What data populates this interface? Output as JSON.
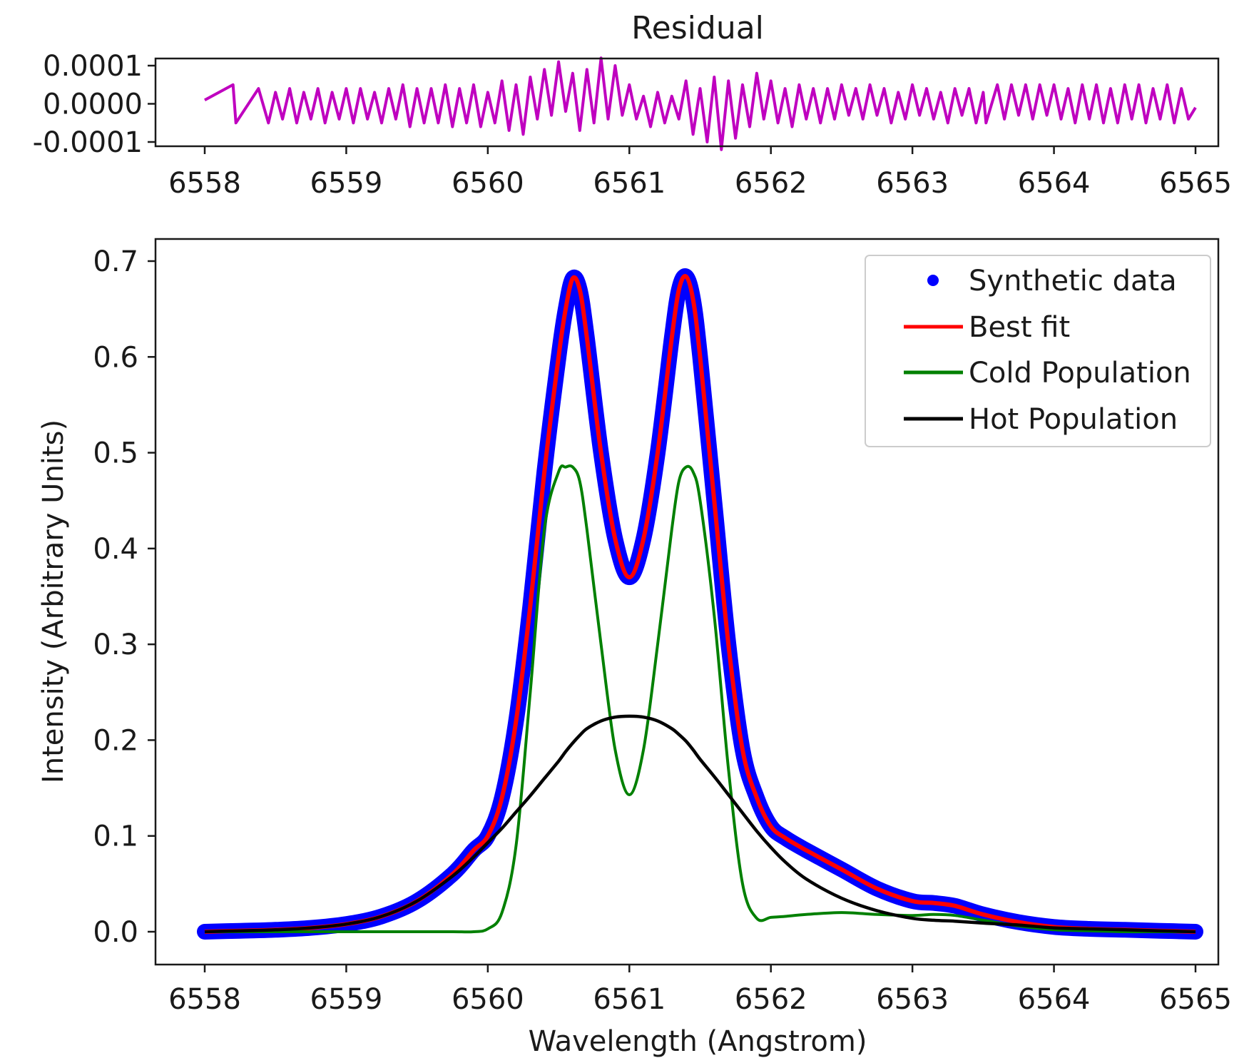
{
  "chart_data": [
    {
      "type": "line",
      "title": "Residual",
      "xlabel": "",
      "ylabel": "",
      "xlim": [
        6558,
        6565
      ],
      "ylim": [
        -0.00012,
        0.00012
      ],
      "xticks": [
        "6558",
        "6559",
        "6560",
        "6561",
        "6562",
        "6563",
        "6564",
        "6565"
      ],
      "yticks": [
        "0.0001",
        "0.0000",
        "-0.0001"
      ],
      "grid": false,
      "series": [
        {
          "name": "Residual",
          "color": "#bf00bf",
          "x": [
            6558.0,
            6558.2,
            6558.22,
            6558.38,
            6558.45,
            6558.5,
            6558.55,
            6558.6,
            6558.65,
            6558.7,
            6558.75,
            6558.8,
            6558.85,
            6558.9,
            6558.95,
            6559.0,
            6559.05,
            6559.1,
            6559.15,
            6559.2,
            6559.25,
            6559.3,
            6559.35,
            6559.4,
            6559.45,
            6559.5,
            6559.55,
            6559.6,
            6559.65,
            6559.7,
            6559.75,
            6559.8,
            6559.85,
            6559.9,
            6559.95,
            6560.0,
            6560.05,
            6560.1,
            6560.15,
            6560.2,
            6560.25,
            6560.3,
            6560.35,
            6560.4,
            6560.45,
            6560.5,
            6560.55,
            6560.6,
            6560.65,
            6560.7,
            6560.75,
            6560.8,
            6560.85,
            6560.9,
            6560.95,
            6561.0,
            6561.05,
            6561.1,
            6561.15,
            6561.2,
            6561.25,
            6561.3,
            6561.35,
            6561.4,
            6561.45,
            6561.5,
            6561.55,
            6561.6,
            6561.65,
            6561.7,
            6561.75,
            6561.8,
            6561.85,
            6561.9,
            6561.95,
            6562.0,
            6562.05,
            6562.1,
            6562.15,
            6562.2,
            6562.25,
            6562.3,
            6562.35,
            6562.4,
            6562.45,
            6562.5,
            6562.55,
            6562.6,
            6562.65,
            6562.7,
            6562.75,
            6562.8,
            6562.85,
            6562.9,
            6562.95,
            6563.0,
            6563.05,
            6563.1,
            6563.15,
            6563.2,
            6563.25,
            6563.3,
            6563.35,
            6563.4,
            6563.45,
            6563.5,
            6563.52,
            6563.6,
            6563.65,
            6563.7,
            6563.75,
            6563.8,
            6563.85,
            6563.9,
            6563.95,
            6564.0,
            6564.05,
            6564.1,
            6564.15,
            6564.2,
            6564.25,
            6564.3,
            6564.35,
            6564.4,
            6564.45,
            6564.5,
            6564.55,
            6564.6,
            6564.65,
            6564.7,
            6564.75,
            6564.8,
            6564.85,
            6564.9,
            6564.95,
            6565.0
          ],
          "y": [
            1e-05,
            5e-05,
            -5e-05,
            4e-05,
            -5e-05,
            3e-05,
            -4e-05,
            4e-05,
            -5e-05,
            3e-05,
            -4e-05,
            4e-05,
            -5e-05,
            3e-05,
            -4e-05,
            4e-05,
            -5e-05,
            4e-05,
            -4e-05,
            3e-05,
            -5e-05,
            4e-05,
            -4e-05,
            5e-05,
            -6e-05,
            4e-05,
            -5e-05,
            4e-05,
            -5e-05,
            5e-05,
            -6e-05,
            4e-05,
            -5e-05,
            5e-05,
            -6e-05,
            3e-05,
            -5e-05,
            6e-05,
            -7e-05,
            5e-05,
            -8e-05,
            7e-05,
            -4e-05,
            9e-05,
            -3e-05,
            0.00011,
            -2e-05,
            8e-05,
            -7e-05,
            9e-05,
            -5e-05,
            0.00012,
            -4e-05,
            0.0001,
            -3e-05,
            5e-05,
            -4e-05,
            2e-05,
            -6e-05,
            3e-05,
            -5e-05,
            2e-05,
            -4e-05,
            6e-05,
            -8e-05,
            4e-05,
            -0.0001,
            7e-05,
            -0.00012,
            6e-05,
            -9e-05,
            5e-05,
            -6e-05,
            8e-05,
            -4e-05,
            6e-05,
            -5e-05,
            4e-05,
            -6e-05,
            5e-05,
            -4e-05,
            4e-05,
            -5e-05,
            4e-05,
            -4e-05,
            5e-05,
            -3e-05,
            4e-05,
            -4e-05,
            5e-05,
            -3e-05,
            4e-05,
            -5e-05,
            3e-05,
            -4e-05,
            5e-05,
            -3e-05,
            4e-05,
            -4e-05,
            3e-05,
            -5e-05,
            4e-05,
            -3e-05,
            4e-05,
            -5e-05,
            3e-05,
            -5e-05,
            5e-05,
            -4e-05,
            5e-05,
            -3e-05,
            5e-05,
            -4e-05,
            5e-05,
            -3e-05,
            5e-05,
            -4e-05,
            4e-05,
            -5e-05,
            5e-05,
            -4e-05,
            5e-05,
            -5e-05,
            4e-05,
            -5e-05,
            5e-05,
            -4e-05,
            5e-05,
            -5e-05,
            4e-05,
            -4e-05,
            5e-05,
            -5e-05,
            4e-05,
            -4e-05,
            -1e-05
          ]
        }
      ]
    },
    {
      "type": "line",
      "title": "",
      "xlabel": "Wavelength (Angstrom)",
      "ylabel": "Intensity (Arbitrary Units)",
      "xlim": [
        6557.65,
        6565.3
      ],
      "ylim": [
        -0.035,
        0.73
      ],
      "xticks": [
        "6558",
        "6559",
        "6560",
        "6561",
        "6562",
        "6563",
        "6564",
        "6565"
      ],
      "yticks": [
        "0.0",
        "0.1",
        "0.2",
        "0.3",
        "0.4",
        "0.5",
        "0.6",
        "0.7"
      ],
      "grid": false,
      "legend_position": "top-right",
      "x": [
        6558.0,
        6558.25,
        6558.5,
        6558.75,
        6559.0,
        6559.25,
        6559.5,
        6559.75,
        6559.9,
        6560.0,
        6560.1,
        6560.2,
        6560.3,
        6560.4,
        6560.5,
        6560.55,
        6560.6,
        6560.65,
        6560.7,
        6560.8,
        6560.9,
        6561.0,
        6561.1,
        6561.2,
        6561.3,
        6561.35,
        6561.4,
        6561.45,
        6561.5,
        6561.6,
        6561.7,
        6561.8,
        6561.9,
        6562.0,
        6562.1,
        6562.25,
        6562.5,
        6562.75,
        6563.0,
        6563.15,
        6563.3,
        6563.5,
        6563.75,
        6564.0,
        6564.25,
        6564.5,
        6564.75,
        6565.0
      ],
      "series": [
        {
          "name": "Synthetic data",
          "marker": "dot",
          "color": "#0000ff",
          "values": [
            0.0,
            0.001,
            0.002,
            0.004,
            0.008,
            0.016,
            0.032,
            0.06,
            0.085,
            0.1,
            0.14,
            0.22,
            0.34,
            0.48,
            0.6,
            0.65,
            0.682,
            0.67,
            0.62,
            0.5,
            0.41,
            0.37,
            0.41,
            0.5,
            0.62,
            0.67,
            0.684,
            0.66,
            0.6,
            0.45,
            0.3,
            0.19,
            0.14,
            0.11,
            0.098,
            0.085,
            0.065,
            0.045,
            0.032,
            0.03,
            0.027,
            0.018,
            0.01,
            0.005,
            0.003,
            0.002,
            0.001,
            0.0
          ]
        },
        {
          "name": "Best fit",
          "color": "#ff0000",
          "values": [
            0.0,
            0.001,
            0.002,
            0.004,
            0.008,
            0.016,
            0.032,
            0.06,
            0.085,
            0.1,
            0.14,
            0.22,
            0.34,
            0.48,
            0.6,
            0.65,
            0.682,
            0.67,
            0.62,
            0.5,
            0.41,
            0.37,
            0.41,
            0.5,
            0.62,
            0.67,
            0.684,
            0.66,
            0.6,
            0.45,
            0.3,
            0.19,
            0.14,
            0.11,
            0.098,
            0.085,
            0.065,
            0.045,
            0.032,
            0.03,
            0.027,
            0.018,
            0.01,
            0.005,
            0.003,
            0.002,
            0.001,
            0.0
          ]
        },
        {
          "name": "Cold Population",
          "color": "#008000",
          "values": [
            0.0,
            0.0,
            0.0,
            0.0,
            0.0,
            0.0,
            0.0,
            0.0,
            0.0,
            0.003,
            0.02,
            0.09,
            0.25,
            0.42,
            0.48,
            0.485,
            0.485,
            0.47,
            0.42,
            0.3,
            0.19,
            0.143,
            0.19,
            0.3,
            0.42,
            0.47,
            0.485,
            0.48,
            0.45,
            0.33,
            0.17,
            0.05,
            0.014,
            0.015,
            0.016,
            0.018,
            0.02,
            0.018,
            0.017,
            0.018,
            0.017,
            0.012,
            0.006,
            0.002,
            0.001,
            0.0,
            0.0,
            0.0
          ]
        },
        {
          "name": "Hot Population",
          "color": "#000000",
          "values": [
            0.0,
            0.001,
            0.002,
            0.004,
            0.008,
            0.016,
            0.032,
            0.058,
            0.078,
            0.093,
            0.108,
            0.125,
            0.142,
            0.16,
            0.178,
            0.188,
            0.197,
            0.205,
            0.212,
            0.22,
            0.224,
            0.225,
            0.224,
            0.22,
            0.212,
            0.206,
            0.199,
            0.19,
            0.18,
            0.162,
            0.143,
            0.124,
            0.105,
            0.088,
            0.073,
            0.055,
            0.035,
            0.022,
            0.014,
            0.012,
            0.011,
            0.009,
            0.007,
            0.004,
            0.003,
            0.002,
            0.001,
            0.0
          ]
        }
      ]
    }
  ]
}
